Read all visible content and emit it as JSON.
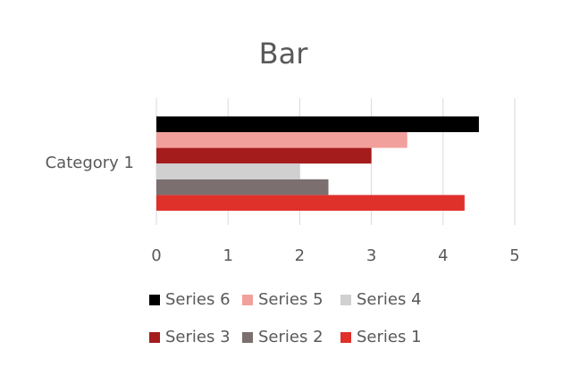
{
  "chart_data": {
    "type": "bar",
    "orientation": "horizontal",
    "title": "Bar",
    "categories": [
      "Category 1"
    ],
    "series": [
      {
        "name": "Series 1",
        "color": "#e0302a",
        "values": [
          4.3
        ]
      },
      {
        "name": "Series 2",
        "color": "#7b6f6f",
        "values": [
          2.4
        ]
      },
      {
        "name": "Series 3",
        "color": "#a51c1c",
        "values": [
          3
        ]
      },
      {
        "name": "Series 4",
        "color": "#d0d0d0",
        "values": [
          2
        ]
      },
      {
        "name": "Series 5",
        "color": "#f2a09c",
        "values": [
          3.5
        ]
      },
      {
        "name": "Series 6",
        "color": "#000000",
        "values": [
          4.5
        ]
      }
    ],
    "xlim": [
      0,
      5
    ],
    "xticks": [
      0,
      1,
      2,
      3,
      4,
      5
    ],
    "grid": true
  }
}
